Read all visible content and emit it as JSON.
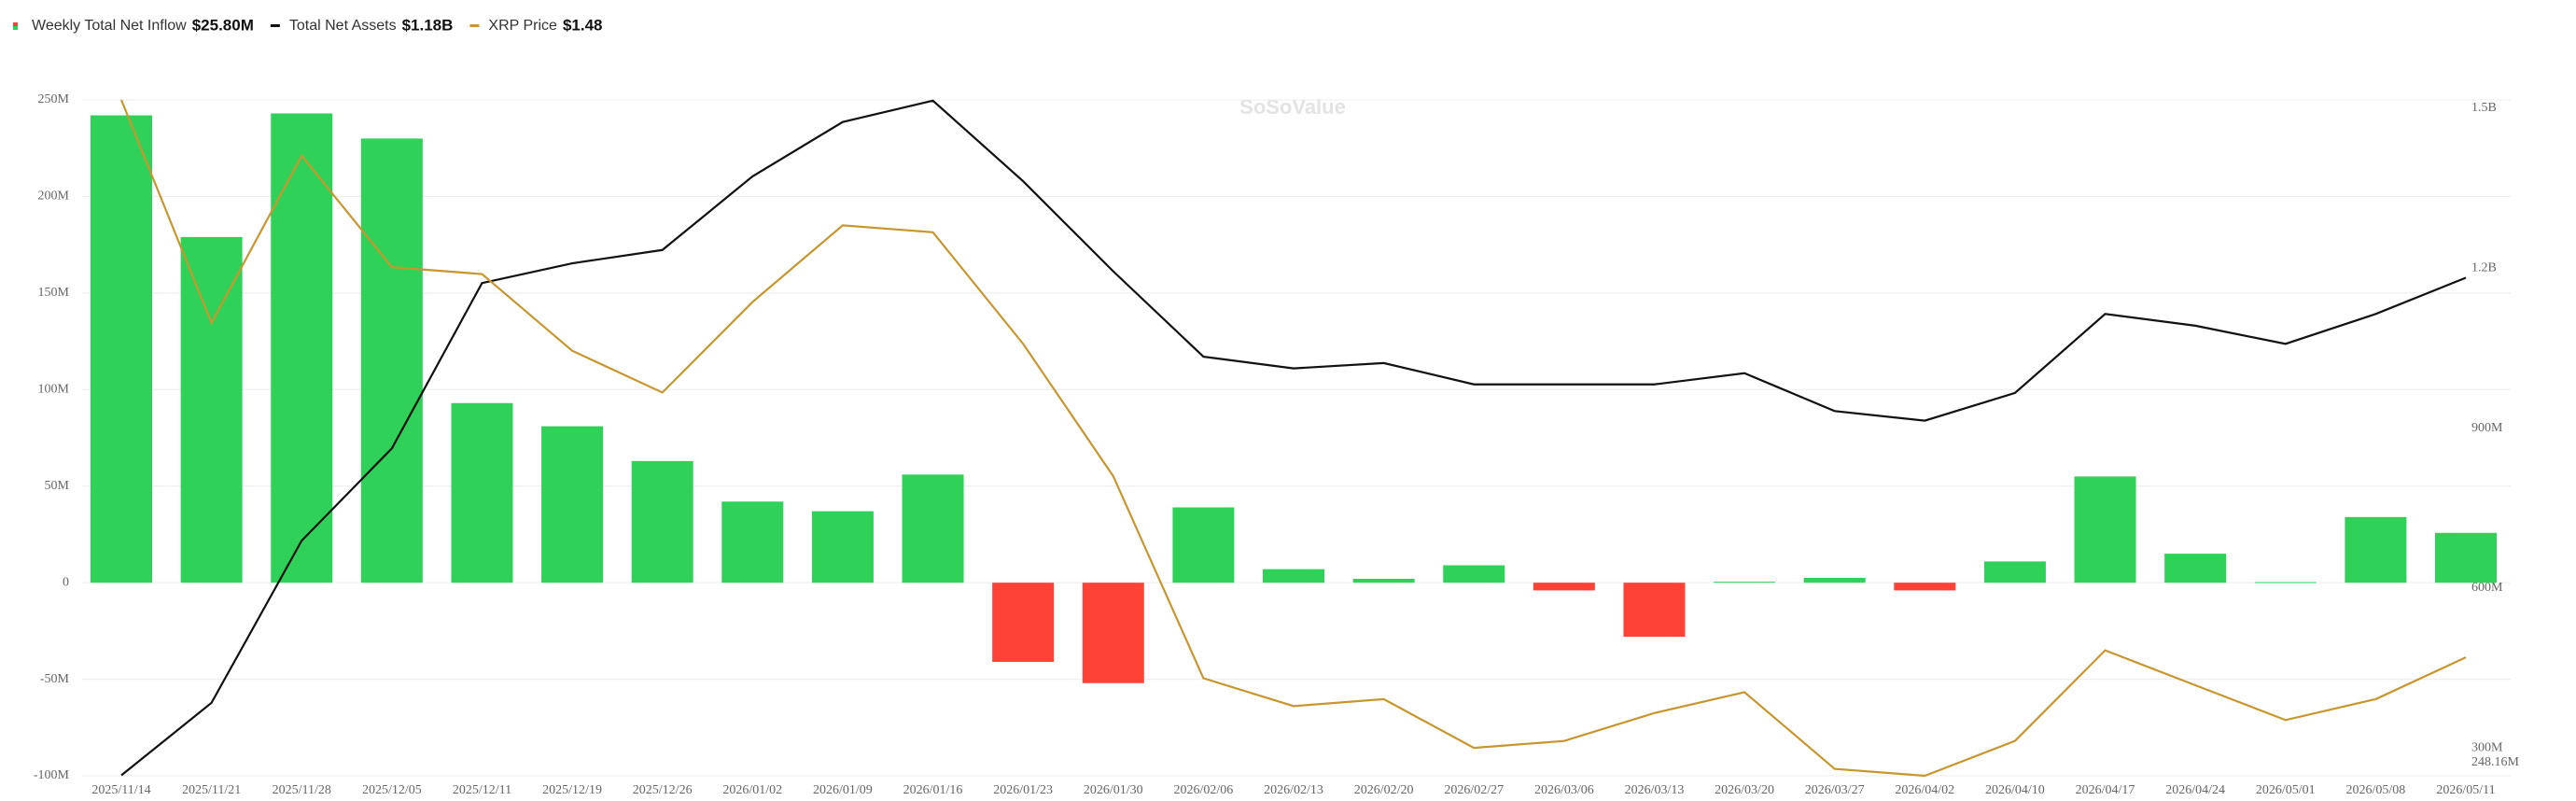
{
  "chart_data": {
    "type": "bar",
    "watermark": "SoSoValue",
    "grid": true,
    "categories": [
      "2025/11/14",
      "2025/11/21",
      "2025/11/28",
      "2025/12/05",
      "2025/12/11",
      "2025/12/19",
      "2025/12/26",
      "2026/01/02",
      "2026/01/09",
      "2026/01/16",
      "2026/01/23",
      "2026/01/30",
      "2026/02/06",
      "2026/02/13",
      "2026/02/20",
      "2026/02/27",
      "2026/03/06",
      "2026/03/13",
      "2026/03/20",
      "2026/03/27",
      "2026/04/02",
      "2026/04/10",
      "2026/04/17",
      "2026/04/24",
      "2026/05/01",
      "2026/05/08",
      "2026/05/11"
    ],
    "ylim": [
      -100000000,
      250000000
    ],
    "yticks": [
      {
        "value": -100000000,
        "label": "-100M"
      },
      {
        "value": -50000000,
        "label": "-50M"
      },
      0,
      {
        "value": 50000000,
        "label": "50M"
      },
      {
        "value": 100000000,
        "label": "100M"
      },
      {
        "value": 150000000,
        "label": "150M"
      },
      {
        "value": 200000000,
        "label": "200M"
      },
      {
        "value": 250000000,
        "label": "250M"
      }
    ],
    "y2lim": [
      248160000,
      1515400000
    ],
    "y2ticks": [
      {
        "value": 248160000,
        "label": "248.16M"
      },
      {
        "value": 300000000,
        "label": "300M"
      },
      {
        "value": 600000000,
        "label": "600M"
      },
      {
        "value": 900000000,
        "label": "900M"
      },
      {
        "value": 1200000000,
        "label": "1.2B"
      },
      {
        "value": 1500000000,
        "label": "1.5B"
      }
    ],
    "series": [
      {
        "name": "Weekly Total Net Inflow",
        "legend_value": "$25.80M",
        "type": "bar",
        "color": "#30d158",
        "negative_color": "#ff4136",
        "values": [
          242000000,
          179000000,
          243000000,
          230000000,
          93000000,
          81000000,
          63000000,
          42000000,
          37000000,
          56000000,
          -41000000,
          -52000000,
          39000000,
          7000000,
          2000000,
          9000000,
          -4000000,
          -28000000,
          500000,
          2500000,
          -4000000,
          11000000,
          55000000,
          15000000,
          300000,
          34000000,
          25800000
        ]
      },
      {
        "name": "Total Net Assets",
        "legend_value": "$1.18B",
        "type": "line",
        "axis": "y2",
        "color": "#111111",
        "values": [
          249000000,
          385000000,
          689000000,
          862000000,
          1172000000,
          1209000000,
          1234000000,
          1372000000,
          1474000000,
          1514000000,
          1363000000,
          1194000000,
          1034000000,
          1012000000,
          1022000000,
          982000000,
          982000000,
          982000000,
          1003000000,
          932000000,
          914000000,
          966000000,
          1114000000,
          1092000000,
          1058000000,
          1114000000,
          1182000000
        ]
      },
      {
        "name": "XRP Price",
        "legend_value": "$1.48",
        "type": "line",
        "axis": "hidden",
        "color": "#c8962e",
        "values": [
          2.28,
          1.96,
          2.2,
          2.04,
          2.03,
          1.92,
          1.86,
          1.99,
          2.1,
          2.09,
          1.93,
          1.74,
          1.45,
          1.41,
          1.42,
          1.35,
          1.36,
          1.4,
          1.43,
          1.32,
          1.31,
          1.36,
          1.49,
          1.44,
          1.39,
          1.42,
          1.48
        ]
      }
    ]
  }
}
